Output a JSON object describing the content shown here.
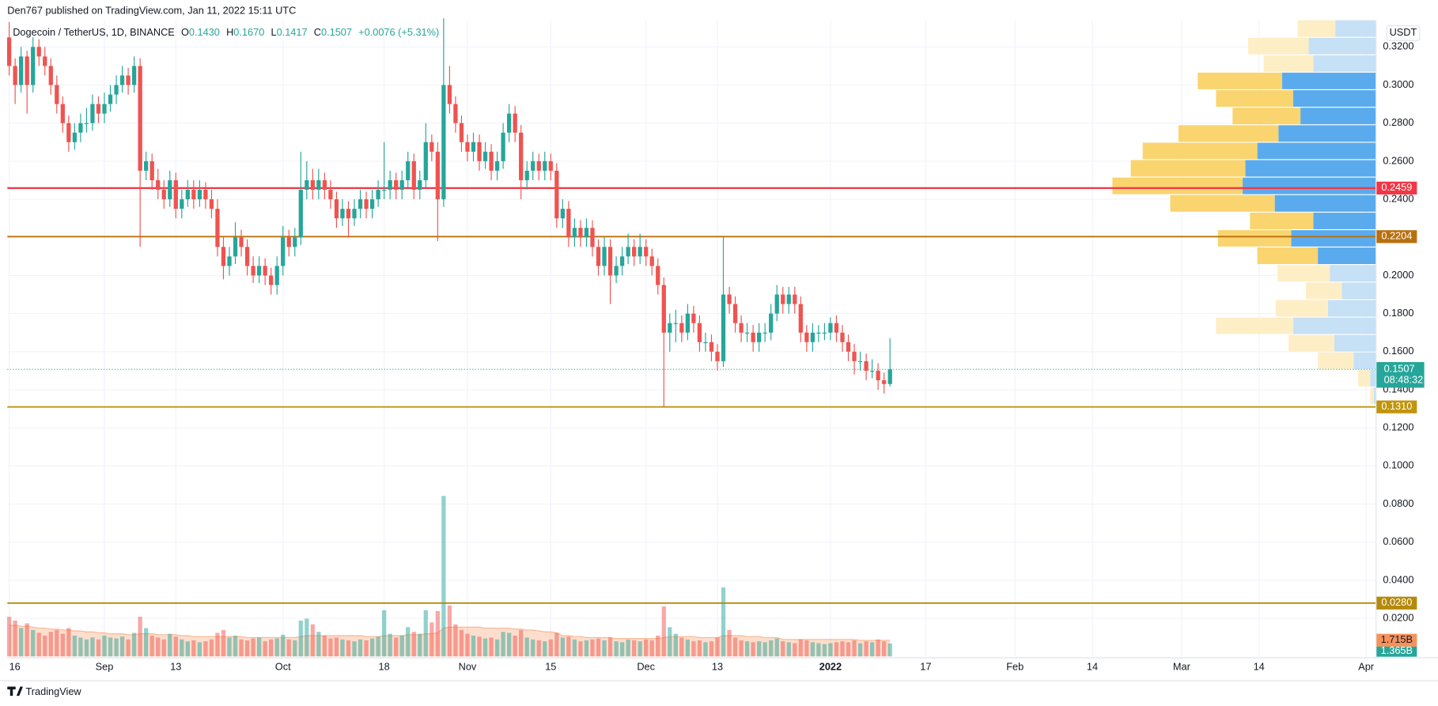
{
  "header": "Den767 published on TradingView.com, Jan 11, 2022 15:11 UTC",
  "footer": "TradingView",
  "chart_data": {
    "type": "candlestick",
    "legend": {
      "symbol": "Dogecoin / TetherUS, 1D, BINANCE",
      "items": [
        {
          "key": "O",
          "value": "0.1430"
        },
        {
          "key": "H",
          "value": "0.1670"
        },
        {
          "key": "L",
          "value": "0.1417"
        },
        {
          "key": "C",
          "value": "0.1507"
        }
      ],
      "change": "+0.0076 (+5.31%)"
    },
    "unit": "USDT",
    "up_color": "#26a69a",
    "down_color": "#ef5350",
    "xlim": [
      -0.31,
      229.6
    ],
    "xticks": [
      {
        "value": 0,
        "label": "16"
      },
      {
        "value": 16,
        "label": "Sep"
      },
      {
        "value": 28,
        "label": "13"
      },
      {
        "value": 46,
        "label": "Oct"
      },
      {
        "value": 63,
        "label": "18"
      },
      {
        "value": 77,
        "label": "Nov"
      },
      {
        "value": 91,
        "label": "15"
      },
      {
        "value": 107,
        "label": "Dec"
      },
      {
        "value": 119,
        "label": "13"
      },
      {
        "value": 138,
        "label": "2022"
      },
      {
        "value": 154,
        "label": "17"
      },
      {
        "value": 169,
        "label": "Feb"
      },
      {
        "value": 182,
        "label": "14"
      },
      {
        "value": 197,
        "label": "Mar"
      },
      {
        "value": 210,
        "label": "14"
      },
      {
        "value": 228,
        "label": "Apr"
      }
    ],
    "ylim": [
      0,
      0.334
    ],
    "yticks": [
      {
        "value": 0.32,
        "label": "0.3200"
      },
      {
        "value": 0.3,
        "label": "0.3000"
      },
      {
        "value": 0.28,
        "label": "0.2800"
      },
      {
        "value": 0.26,
        "label": "0.2600"
      },
      {
        "value": 0.24,
        "label": "0.2400"
      },
      {
        "value": 0.2,
        "label": "0.2000"
      },
      {
        "value": 0.18,
        "label": "0.1800"
      },
      {
        "value": 0.16,
        "label": "0.1600"
      },
      {
        "value": 0.14,
        "label": "0.1400"
      },
      {
        "value": 0.12,
        "label": "0.1200"
      },
      {
        "value": 0.1,
        "label": "0.1000"
      },
      {
        "value": 0.08,
        "label": "0.0800"
      },
      {
        "value": 0.06,
        "label": "0.0600"
      },
      {
        "value": 0.04,
        "label": "0.0400"
      },
      {
        "value": 0.02,
        "label": "0.0200"
      }
    ],
    "grid": true,
    "ohlc": [
      [
        0.325,
        0.333,
        0.305,
        0.31
      ],
      [
        0.31,
        0.314,
        0.29,
        0.3
      ],
      [
        0.3,
        0.32,
        0.296,
        0.315
      ],
      [
        0.315,
        0.318,
        0.285,
        0.3
      ],
      [
        0.3,
        0.325,
        0.296,
        0.32
      ],
      [
        0.32,
        0.324,
        0.31,
        0.315
      ],
      [
        0.315,
        0.32,
        0.305,
        0.31
      ],
      [
        0.31,
        0.314,
        0.295,
        0.3
      ],
      [
        0.3,
        0.305,
        0.285,
        0.29
      ],
      [
        0.29,
        0.294,
        0.275,
        0.28
      ],
      [
        0.28,
        0.284,
        0.265,
        0.27
      ],
      [
        0.27,
        0.28,
        0.266,
        0.275
      ],
      [
        0.275,
        0.285,
        0.27,
        0.28
      ],
      [
        0.28,
        0.288,
        0.275,
        0.28
      ],
      [
        0.28,
        0.295,
        0.276,
        0.29
      ],
      [
        0.29,
        0.294,
        0.28,
        0.285
      ],
      [
        0.285,
        0.296,
        0.28,
        0.29
      ],
      [
        0.29,
        0.3,
        0.286,
        0.295
      ],
      [
        0.295,
        0.305,
        0.29,
        0.3
      ],
      [
        0.3,
        0.31,
        0.296,
        0.305
      ],
      [
        0.305,
        0.309,
        0.295,
        0.3
      ],
      [
        0.3,
        0.315,
        0.296,
        0.31
      ],
      [
        0.31,
        0.314,
        0.215,
        0.255
      ],
      [
        0.255,
        0.265,
        0.25,
        0.26
      ],
      [
        0.26,
        0.264,
        0.245,
        0.25
      ],
      [
        0.25,
        0.256,
        0.24,
        0.245
      ],
      [
        0.245,
        0.25,
        0.235,
        0.24
      ],
      [
        0.24,
        0.255,
        0.236,
        0.25
      ],
      [
        0.25,
        0.254,
        0.23,
        0.235
      ],
      [
        0.235,
        0.245,
        0.23,
        0.24
      ],
      [
        0.24,
        0.25,
        0.236,
        0.245
      ],
      [
        0.245,
        0.25,
        0.235,
        0.24
      ],
      [
        0.24,
        0.25,
        0.236,
        0.245
      ],
      [
        0.245,
        0.249,
        0.235,
        0.24
      ],
      [
        0.24,
        0.245,
        0.23,
        0.235
      ],
      [
        0.235,
        0.24,
        0.21,
        0.215
      ],
      [
        0.215,
        0.22,
        0.198,
        0.205
      ],
      [
        0.205,
        0.215,
        0.2,
        0.21
      ],
      [
        0.21,
        0.228,
        0.206,
        0.22
      ],
      [
        0.22,
        0.224,
        0.21,
        0.215
      ],
      [
        0.215,
        0.219,
        0.2,
        0.205
      ],
      [
        0.205,
        0.21,
        0.196,
        0.2
      ],
      [
        0.2,
        0.21,
        0.196,
        0.205
      ],
      [
        0.205,
        0.209,
        0.195,
        0.2
      ],
      [
        0.2,
        0.204,
        0.19,
        0.195
      ],
      [
        0.195,
        0.21,
        0.19,
        0.205
      ],
      [
        0.205,
        0.226,
        0.2,
        0.22
      ],
      [
        0.22,
        0.224,
        0.21,
        0.215
      ],
      [
        0.215,
        0.225,
        0.21,
        0.22
      ],
      [
        0.22,
        0.265,
        0.216,
        0.245
      ],
      [
        0.245,
        0.26,
        0.24,
        0.25
      ],
      [
        0.25,
        0.256,
        0.24,
        0.245
      ],
      [
        0.245,
        0.256,
        0.24,
        0.25
      ],
      [
        0.25,
        0.254,
        0.24,
        0.245
      ],
      [
        0.245,
        0.25,
        0.235,
        0.24
      ],
      [
        0.24,
        0.244,
        0.225,
        0.23
      ],
      [
        0.23,
        0.24,
        0.226,
        0.235
      ],
      [
        0.235,
        0.239,
        0.22,
        0.23
      ],
      [
        0.23,
        0.24,
        0.226,
        0.235
      ],
      [
        0.235,
        0.245,
        0.23,
        0.24
      ],
      [
        0.24,
        0.244,
        0.23,
        0.235
      ],
      [
        0.235,
        0.245,
        0.23,
        0.24
      ],
      [
        0.24,
        0.25,
        0.236,
        0.245
      ],
      [
        0.245,
        0.27,
        0.24,
        0.245
      ],
      [
        0.245,
        0.255,
        0.24,
        0.25
      ],
      [
        0.25,
        0.254,
        0.24,
        0.245
      ],
      [
        0.245,
        0.255,
        0.24,
        0.25
      ],
      [
        0.25,
        0.265,
        0.246,
        0.26
      ],
      [
        0.26,
        0.264,
        0.24,
        0.245
      ],
      [
        0.245,
        0.255,
        0.24,
        0.25
      ],
      [
        0.25,
        0.28,
        0.246,
        0.27
      ],
      [
        0.27,
        0.274,
        0.26,
        0.265
      ],
      [
        0.265,
        0.27,
        0.218,
        0.24
      ],
      [
        0.24,
        0.335,
        0.236,
        0.3
      ],
      [
        0.3,
        0.31,
        0.285,
        0.29
      ],
      [
        0.29,
        0.294,
        0.275,
        0.28
      ],
      [
        0.28,
        0.284,
        0.265,
        0.27
      ],
      [
        0.27,
        0.274,
        0.26,
        0.265
      ],
      [
        0.265,
        0.275,
        0.26,
        0.27
      ],
      [
        0.27,
        0.274,
        0.255,
        0.26
      ],
      [
        0.26,
        0.27,
        0.256,
        0.265
      ],
      [
        0.265,
        0.269,
        0.25,
        0.255
      ],
      [
        0.255,
        0.265,
        0.25,
        0.26
      ],
      [
        0.26,
        0.28,
        0.256,
        0.275
      ],
      [
        0.275,
        0.29,
        0.27,
        0.285
      ],
      [
        0.285,
        0.289,
        0.27,
        0.275
      ],
      [
        0.275,
        0.279,
        0.24,
        0.25
      ],
      [
        0.25,
        0.26,
        0.245,
        0.255
      ],
      [
        0.255,
        0.265,
        0.25,
        0.26
      ],
      [
        0.26,
        0.264,
        0.25,
        0.255
      ],
      [
        0.255,
        0.265,
        0.25,
        0.26
      ],
      [
        0.26,
        0.264,
        0.25,
        0.255
      ],
      [
        0.255,
        0.259,
        0.225,
        0.23
      ],
      [
        0.23,
        0.24,
        0.225,
        0.235
      ],
      [
        0.235,
        0.239,
        0.215,
        0.22
      ],
      [
        0.22,
        0.23,
        0.215,
        0.225
      ],
      [
        0.225,
        0.229,
        0.215,
        0.22
      ],
      [
        0.22,
        0.23,
        0.215,
        0.225
      ],
      [
        0.225,
        0.229,
        0.21,
        0.215
      ],
      [
        0.215,
        0.219,
        0.2,
        0.205
      ],
      [
        0.205,
        0.22,
        0.2,
        0.215
      ],
      [
        0.215,
        0.219,
        0.185,
        0.2
      ],
      [
        0.2,
        0.21,
        0.196,
        0.205
      ],
      [
        0.205,
        0.215,
        0.2,
        0.21
      ],
      [
        0.21,
        0.222,
        0.206,
        0.215
      ],
      [
        0.215,
        0.219,
        0.205,
        0.21
      ],
      [
        0.21,
        0.222,
        0.206,
        0.215
      ],
      [
        0.215,
        0.219,
        0.205,
        0.21
      ],
      [
        0.21,
        0.214,
        0.2,
        0.205
      ],
      [
        0.205,
        0.209,
        0.19,
        0.195
      ],
      [
        0.195,
        0.199,
        0.131,
        0.17
      ],
      [
        0.17,
        0.18,
        0.16,
        0.175
      ],
      [
        0.175,
        0.182,
        0.165,
        0.175
      ],
      [
        0.175,
        0.179,
        0.165,
        0.17
      ],
      [
        0.17,
        0.185,
        0.166,
        0.18
      ],
      [
        0.18,
        0.184,
        0.17,
        0.175
      ],
      [
        0.175,
        0.179,
        0.16,
        0.165
      ],
      [
        0.165,
        0.17,
        0.16,
        0.165
      ],
      [
        0.165,
        0.169,
        0.155,
        0.16
      ],
      [
        0.16,
        0.164,
        0.15,
        0.155
      ],
      [
        0.155,
        0.22,
        0.152,
        0.19
      ],
      [
        0.19,
        0.194,
        0.18,
        0.185
      ],
      [
        0.185,
        0.189,
        0.17,
        0.175
      ],
      [
        0.175,
        0.179,
        0.165,
        0.17
      ],
      [
        0.17,
        0.175,
        0.165,
        0.17
      ],
      [
        0.17,
        0.174,
        0.16,
        0.165
      ],
      [
        0.165,
        0.175,
        0.16,
        0.17
      ],
      [
        0.17,
        0.175,
        0.165,
        0.17
      ],
      [
        0.17,
        0.185,
        0.166,
        0.18
      ],
      [
        0.18,
        0.195,
        0.176,
        0.19
      ],
      [
        0.19,
        0.194,
        0.18,
        0.185
      ],
      [
        0.185,
        0.194,
        0.18,
        0.19
      ],
      [
        0.19,
        0.194,
        0.18,
        0.185
      ],
      [
        0.185,
        0.189,
        0.165,
        0.17
      ],
      [
        0.17,
        0.174,
        0.16,
        0.165
      ],
      [
        0.165,
        0.175,
        0.16,
        0.17
      ],
      [
        0.17,
        0.174,
        0.165,
        0.17
      ],
      [
        0.17,
        0.175,
        0.166,
        0.17
      ],
      [
        0.17,
        0.178,
        0.166,
        0.175
      ],
      [
        0.175,
        0.179,
        0.165,
        0.17
      ],
      [
        0.17,
        0.174,
        0.16,
        0.165
      ],
      [
        0.165,
        0.169,
        0.155,
        0.16
      ],
      [
        0.16,
        0.164,
        0.148,
        0.155
      ],
      [
        0.155,
        0.16,
        0.15,
        0.155
      ],
      [
        0.155,
        0.159,
        0.145,
        0.15
      ],
      [
        0.15,
        0.156,
        0.146,
        0.15
      ],
      [
        0.15,
        0.154,
        0.14,
        0.145
      ],
      [
        0.145,
        0.149,
        0.138,
        0.143
      ],
      [
        0.143,
        0.167,
        0.1417,
        0.1507
      ]
    ],
    "volume_ylim": [
      0,
      67.4
    ],
    "volume": [
      4.2,
      3.8,
      3.0,
      3.5,
      2.8,
      2.5,
      2.2,
      2.6,
      2.8,
      2.4,
      3.0,
      2.2,
      2.0,
      1.8,
      2.0,
      1.8,
      2.2,
      2.0,
      1.9,
      2.1,
      1.8,
      2.5,
      4.2,
      3.0,
      2.2,
      2.0,
      1.8,
      2.4,
      2.1,
      1.8,
      1.6,
      1.7,
      1.5,
      1.6,
      1.8,
      2.5,
      2.8,
      2.0,
      2.2,
      1.8,
      1.7,
      1.9,
      2.0,
      1.6,
      1.8,
      1.9,
      2.3,
      1.8,
      1.7,
      3.8,
      4.0,
      3.4,
      2.6,
      2.2,
      1.9,
      2.0,
      1.8,
      1.7,
      1.6,
      1.8,
      1.7,
      1.9,
      2.1,
      4.9,
      2.4,
      2.0,
      2.2,
      3.1,
      2.6,
      2.4,
      4.9,
      3.6,
      4.8,
      17.0,
      5.4,
      3.4,
      2.8,
      2.4,
      2.2,
      2.1,
      1.9,
      2.0,
      1.8,
      2.6,
      2.5,
      2.2,
      2.8,
      2.0,
      1.8,
      1.7,
      1.6,
      1.8,
      2.5,
      2.0,
      2.1,
      1.8,
      1.6,
      1.7,
      1.8,
      1.9,
      1.7,
      2.0,
      1.6,
      1.5,
      1.8,
      1.7,
      1.6,
      1.8,
      1.7,
      2.2,
      5.3,
      3.1,
      2.4,
      2.0,
      1.8,
      1.6,
      1.7,
      1.5,
      1.6,
      2.0,
      7.3,
      2.8,
      2.0,
      1.7,
      1.6,
      1.5,
      1.6,
      1.5,
      1.7,
      1.9,
      1.6,
      1.5,
      1.4,
      1.8,
      1.7,
      1.5,
      1.4,
      1.3,
      1.4,
      1.5,
      1.6,
      1.5,
      1.7,
      1.4,
      1.6,
      1.5,
      1.8,
      1.6,
      1.365
    ],
    "volume_ma": [
      3.3,
      3.3,
      3.2,
      3.2,
      3.1,
      3.0,
      3.0,
      2.9,
      2.9,
      2.8,
      2.8,
      2.7,
      2.7,
      2.6,
      2.6,
      2.5,
      2.5,
      2.4,
      2.4,
      2.4,
      2.3,
      2.3,
      2.4,
      2.4,
      2.4,
      2.3,
      2.3,
      2.3,
      2.3,
      2.2,
      2.2,
      2.1,
      2.1,
      2.1,
      2.1,
      2.1,
      2.1,
      2.1,
      2.1,
      2.1,
      2.0,
      2.0,
      2.0,
      2.0,
      2.0,
      2.0,
      2.0,
      2.0,
      2.0,
      2.1,
      2.2,
      2.2,
      2.2,
      2.2,
      2.2,
      2.2,
      2.2,
      2.2,
      2.2,
      2.2,
      2.1,
      2.1,
      2.1,
      2.2,
      2.2,
      2.2,
      2.2,
      2.3,
      2.3,
      2.3,
      2.4,
      2.4,
      2.5,
      3.0,
      3.1,
      3.1,
      3.1,
      3.1,
      3.1,
      3.1,
      3.0,
      3.0,
      3.0,
      3.0,
      3.0,
      2.9,
      2.9,
      2.8,
      2.8,
      2.7,
      2.6,
      2.6,
      2.5,
      2.2,
      2.2,
      2.1,
      2.1,
      2.0,
      2.0,
      2.0,
      2.0,
      2.0,
      1.9,
      1.9,
      1.9,
      1.9,
      1.9,
      1.9,
      1.9,
      1.9,
      2.0,
      2.1,
      2.1,
      2.1,
      2.1,
      2.1,
      2.0,
      2.0,
      2.0,
      2.0,
      2.2,
      2.2,
      2.2,
      2.2,
      2.1,
      2.1,
      2.1,
      2.0,
      2.0,
      2.0,
      1.8,
      1.8,
      1.8,
      1.8,
      1.8,
      1.8,
      1.8,
      1.8,
      1.8,
      1.8,
      1.8,
      1.8,
      1.8,
      1.7,
      1.7,
      1.7,
      1.7,
      1.7,
      1.715
    ],
    "volume_label": "1.365B",
    "volume_ma_label": "1.715B",
    "volume_color": "#26a69a",
    "volume_ma_color": "#f7925a",
    "levels": [
      {
        "value": 0.2459,
        "label": "0.2459",
        "color": "#f23645"
      },
      {
        "value": 0.2204,
        "label": "0.2204",
        "color": "#b8700e"
      },
      {
        "value": 0.131,
        "label": "0.1310",
        "color": "#c1950c"
      },
      {
        "value": 0.028,
        "label": "0.0280",
        "color": "#b58a0a"
      }
    ],
    "last": {
      "value": 0.1507,
      "label": "0.1507",
      "countdown": "08:48:32"
    },
    "profile": {
      "bins": [
        0.334,
        0.3248,
        0.3156,
        0.3065,
        0.2973,
        0.2881,
        0.2789,
        0.2697,
        0.2606,
        0.2514,
        0.2422,
        0.233,
        0.2238,
        0.2147,
        0.2055,
        0.1963,
        0.1871,
        0.1779,
        0.1688,
        0.1596,
        0.1504,
        0.1412,
        0.132
      ],
      "down": [
        41,
        66,
        54,
        92,
        84,
        74,
        109,
        125,
        125,
        142,
        114,
        69,
        80,
        66,
        57,
        39,
        57,
        84,
        50,
        39,
        13,
        4
      ],
      "up": [
        44,
        73,
        68,
        102,
        90,
        82,
        106,
        129,
        142,
        145,
        110,
        68,
        92,
        63,
        50,
        37,
        52,
        90,
        45,
        24,
        6,
        2
      ],
      "value_area": [
        0.2055,
        0.3065
      ],
      "up_color": "#5aabee",
      "down_color": "#f9d46f",
      "up_pale": "#c6e0f6",
      "down_pale": "#fdeec6"
    }
  }
}
